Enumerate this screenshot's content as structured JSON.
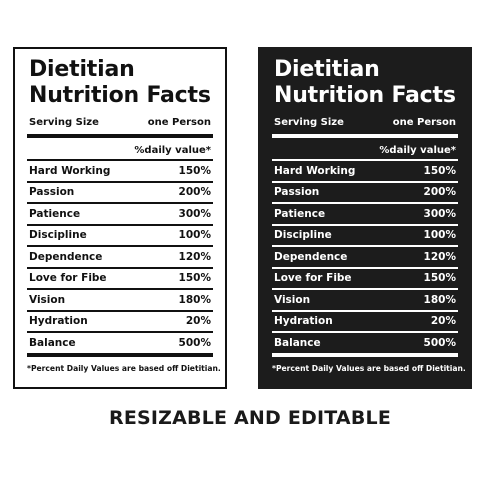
{
  "label": {
    "title_line1": "Dietitian",
    "title_line2": "Nutrition Facts",
    "serving_size_label": "Serving Size",
    "serving_size_value": "one Person",
    "daily_value_header": "%daily value*",
    "rows": [
      {
        "name": "Hard Working",
        "value": "150%"
      },
      {
        "name": "Passion",
        "value": "200%"
      },
      {
        "name": "Patience",
        "value": "300%"
      },
      {
        "name": "Discipline",
        "value": "100%"
      },
      {
        "name": "Dependence",
        "value": "120%"
      },
      {
        "name": "Love for Fibe",
        "value": "150%"
      },
      {
        "name": "Vision",
        "value": "180%"
      },
      {
        "name": "Hydration",
        "value": "20%"
      },
      {
        "name": "Balance",
        "value": "500%"
      }
    ],
    "footnote": "*Percent Daily Values are based off Dietitian."
  },
  "caption": "RESIZABLE AND EDITABLE",
  "side_id": "1378846520",
  "colors": {
    "light_bg": "#ffffff",
    "dark_bg": "#1c1c1c",
    "ink": "#111111"
  }
}
